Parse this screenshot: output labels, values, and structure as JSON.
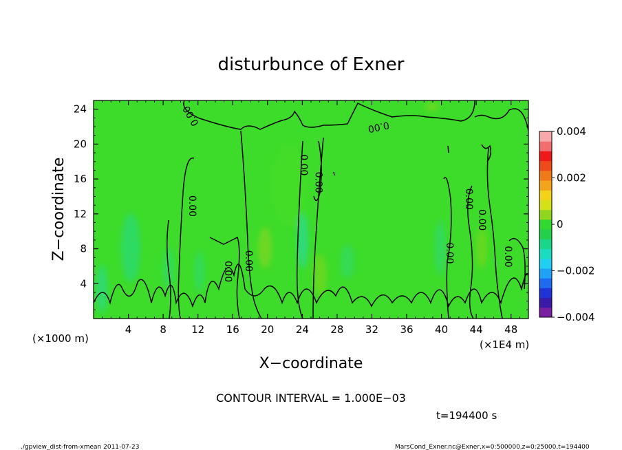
{
  "chart_data": {
    "type": "heatmap",
    "title": "disturbunce of Exner",
    "xlabel": "X−coordinate",
    "ylabel": "Z−coordinate",
    "x_unit": "(×1E4 m)",
    "y_unit": "(×1000 m)",
    "xlim": [
      0,
      50
    ],
    "ylim": [
      0,
      25
    ],
    "x_ticks": [
      4,
      8,
      12,
      16,
      20,
      24,
      28,
      32,
      36,
      40,
      44,
      48
    ],
    "y_ticks": [
      4,
      8,
      12,
      16,
      20,
      24
    ],
    "x_tick_labels": [
      "4",
      "8",
      "12",
      "16",
      "20",
      "24",
      "28",
      "32",
      "36",
      "40",
      "44",
      "48"
    ],
    "y_tick_labels": [
      "4",
      "8",
      "12",
      "16",
      "20",
      "24"
    ],
    "colorbar": {
      "range": [
        -0.004,
        0.004
      ],
      "ticks": [
        0.004,
        0.002,
        0,
        -0.002,
        -0.004
      ],
      "tick_labels": [
        "0.004",
        "0.002",
        "0",
        "−0.002",
        "−0.004"
      ],
      "colors": [
        "#7a1fa0",
        "#3a1aa8",
        "#1f33d6",
        "#1f6bf0",
        "#1fa2f5",
        "#1fd0f0",
        "#19dcc0",
        "#19d68a",
        "#22d04a",
        "#2fd92f",
        "#8fd61c",
        "#d6e01a",
        "#f2d21a",
        "#f2a41a",
        "#f07a1a",
        "#ee4a1a",
        "#ee1a1a",
        "#f26e6e",
        "#f7a8a8"
      ]
    },
    "contour_interval": "CONTOUR INTERVAL = 1.000E−03",
    "contour_labels": [
      {
        "text": "0.00",
        "x": 11,
        "z": 12.9,
        "angle": -90
      },
      {
        "text": "0.00",
        "x": 11.5,
        "z": 23.4,
        "angle": 60
      },
      {
        "text": "0.00",
        "x": 15.1,
        "z": 5.4,
        "angle": -90
      },
      {
        "text": "0.00",
        "x": 17.5,
        "z": 6.6,
        "angle": -90
      },
      {
        "text": "0.00",
        "x": 23.8,
        "z": 17.6,
        "angle": -90
      },
      {
        "text": "0.00",
        "x": 25.5,
        "z": 15.6,
        "angle": -90
      },
      {
        "text": "0.00",
        "x": 32.7,
        "z": 22.3,
        "angle": -12
      },
      {
        "text": "0.00",
        "x": 40.6,
        "z": 7.5,
        "angle": -90
      },
      {
        "text": "0.00",
        "x": 42.8,
        "z": 13.7,
        "angle": -90
      },
      {
        "text": "0.00",
        "x": 44.3,
        "z": 11.3,
        "angle": -90
      },
      {
        "text": "0.00",
        "x": 47.3,
        "z": 7.1,
        "angle": -90
      }
    ],
    "grid": false
  },
  "time_label": "t=194400 s",
  "footer": {
    "left": "./gpview_dist-from-xmean   2011-07-23",
    "right": "MarsCond_Exner.nc@Exner,x=0:500000,z=0:25000,t=194400"
  }
}
